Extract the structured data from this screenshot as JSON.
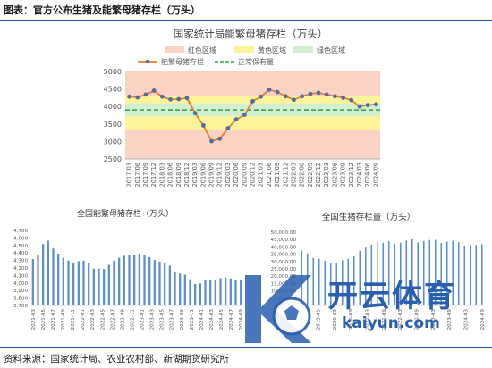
{
  "header": {
    "title": "图表：官方公布生猪及能繁母猪存栏（万头）"
  },
  "footer": {
    "source": "资料来源：国家统计局、农业农村部、新湖期货研究所"
  },
  "watermark": {
    "brand_cn": "开云体育",
    "brand_en": "kaiyun.com"
  },
  "chart_data": [
    {
      "type": "line",
      "title": "国家统计局能繁母猪存栏（万头）",
      "legend": [
        "红色区域",
        "黄色区域",
        "绿色区域",
        "能繁母猪存栏",
        "正常保有量"
      ],
      "legend_position": "top",
      "ylim": [
        2500,
        5000
      ],
      "yticks": [
        2500,
        3000,
        3500,
        4000,
        4500,
        5000
      ],
      "bands": [
        {
          "name": "红色区域",
          "from": 2500,
          "to": 5000,
          "color": "#fbd3c4"
        },
        {
          "name": "黄色区域",
          "from": 3340,
          "to": 4290,
          "color": "#fdf49a"
        },
        {
          "name": "绿色区域",
          "from": 3720,
          "to": 4090,
          "color": "#d2efcf"
        }
      ],
      "reference_line": {
        "name": "正常保有量",
        "value": 3900,
        "color": "#2e9c4a"
      },
      "series_color": "#ec7c31",
      "marker_color": "#4a6fa5",
      "x": [
        "2017/03",
        "2017/06",
        "2017/09",
        "2017/12",
        "2018/03",
        "2018/06",
        "2018/09",
        "2018/12",
        "2019/03",
        "2019/06",
        "2019/09",
        "2019/12",
        "2020/03",
        "2020/06",
        "2020/09",
        "2020/12",
        "2021/03",
        "2021/06",
        "2021/09",
        "2021/12",
        "2022/03",
        "2022/06",
        "2022/09",
        "2022/12",
        "2023/03",
        "2023/06",
        "2023/09",
        "2023/12",
        "2024/03",
        "2024/06",
        "2024/09"
      ],
      "values": [
        4280,
        4260,
        4340,
        4450,
        4280,
        4200,
        4210,
        4240,
        3810,
        3460,
        3010,
        3080,
        3380,
        3630,
        3760,
        4150,
        4280,
        4480,
        4410,
        4290,
        4190,
        4290,
        4360,
        4390,
        4340,
        4290,
        4250,
        4180,
        4000,
        4040,
        4060
      ]
    },
    {
      "type": "bar",
      "title": "全国能繁母猪存栏（万头）",
      "ylim": [
        3700,
        4700
      ],
      "yticks": [
        3700,
        3800,
        3900,
        4000,
        4100,
        4200,
        4300,
        4400,
        4500,
        4600,
        4700
      ],
      "ytick_labels": [
        "3,700",
        "3,800",
        "3,900",
        "4,000",
        "4,100",
        "4,200",
        "4,300",
        "4,400",
        "4,500",
        "4,600",
        "4,700"
      ],
      "color": "#5b8fd1",
      "xtick_labels": [
        "2021-03",
        "2021-05",
        "2021-07",
        "2021-09",
        "2021-11",
        "2022-01",
        "2022-03",
        "2022-05",
        "2022-07",
        "2022-09",
        "2022-11",
        "2023-01",
        "2023-03",
        "2023-05",
        "2023-07",
        "2023-09",
        "2023-11",
        "2024-01",
        "2024-03",
        "2024-05",
        "2024-07",
        "2024-09"
      ],
      "values": [
        4318,
        4380,
        4520,
        4564,
        4459,
        4390,
        4335,
        4300,
        4260,
        4290,
        4296,
        4268,
        4190,
        4192,
        4185,
        4240,
        4297,
        4335,
        4362,
        4370,
        4375,
        4390,
        4380,
        4343,
        4305,
        4284,
        4265,
        4230,
        4141,
        4126,
        4110,
        4050,
        3986,
        3996,
        4038,
        4042,
        4047,
        4064,
        4070,
        4060,
        4045,
        4042
      ]
    },
    {
      "type": "bar",
      "title": "全国生猪存栏量（万头）",
      "ylim": [
        0,
        50000
      ],
      "yticks": [
        0,
        5000,
        10000,
        15000,
        20000,
        25000,
        30000,
        35000,
        40000,
        45000,
        50000
      ],
      "ytick_labels": [
        "0",
        "5,000.00",
        "10,000.00",
        "15,000.00",
        "20,000.00",
        "25,000.00",
        "30,000.00",
        "35,000.00",
        "40,000.00",
        "45,000.00",
        "50,000.00"
      ],
      "color": "#5b8fd1",
      "xtick_labels": [
        "2019-03",
        "2019-09",
        "2020-03",
        "2020-09",
        "2021-03",
        "2021-09",
        "2022-03",
        "2022-09",
        "2023-03",
        "2023-09",
        "2024-03",
        "2024-09"
      ],
      "values": [
        37500,
        35600,
        32500,
        31800,
        30500,
        28600,
        29100,
        30800,
        31800,
        33600,
        37300,
        39500,
        41500,
        43500,
        42800,
        43900,
        42300,
        42900,
        44300,
        45200,
        43100,
        44000,
        44700,
        44800,
        42600,
        43500,
        44200,
        43200,
        40800,
        41100,
        41300,
        41800
      ]
    }
  ]
}
